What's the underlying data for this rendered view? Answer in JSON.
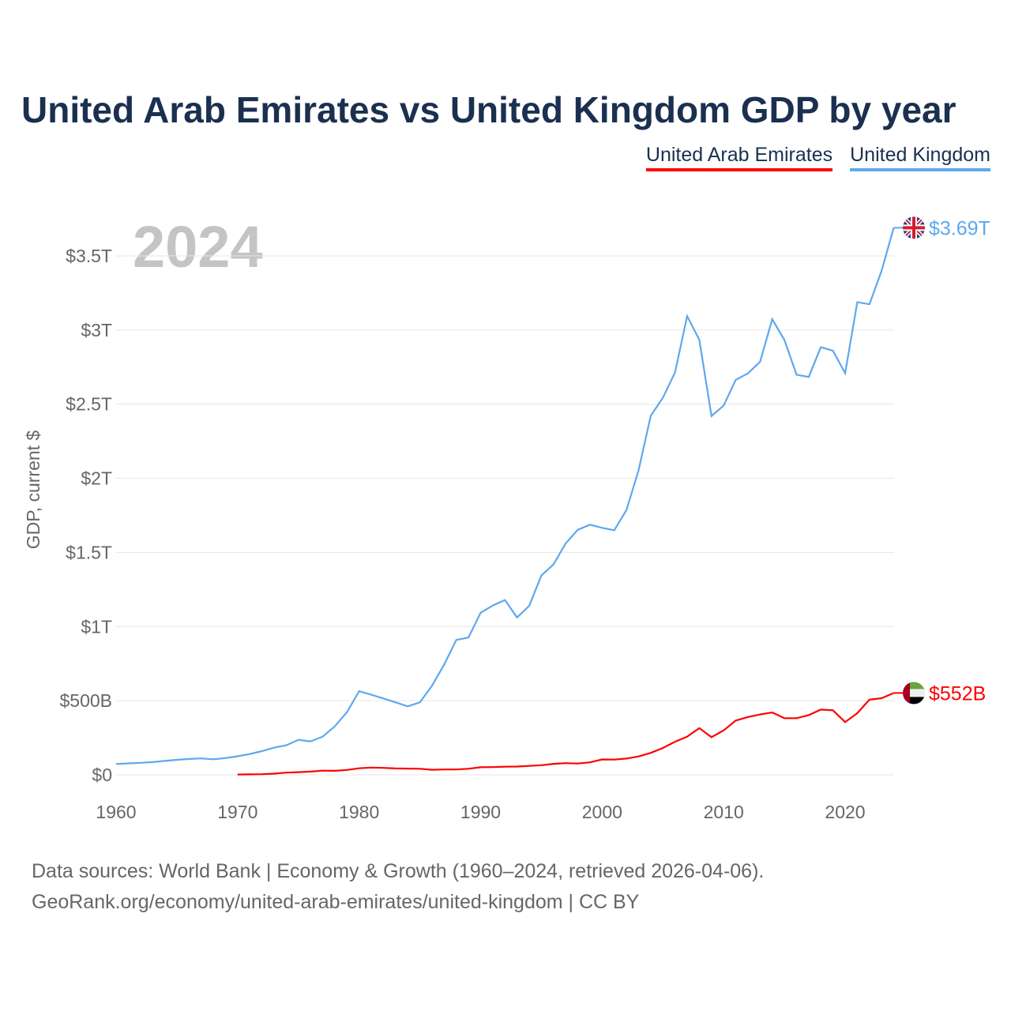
{
  "chart_data": {
    "type": "line",
    "title": "United Arab Emirates vs United Kingdom GDP by year",
    "ylabel": "GDP, current $",
    "xlabel": "",
    "year_label": "2024",
    "xlim": [
      1960,
      2024
    ],
    "ylim": [
      0,
      3.7
    ],
    "x_ticks": [
      {
        "v": 1960,
        "label": "1960"
      },
      {
        "v": 1970,
        "label": "1970"
      },
      {
        "v": 1980,
        "label": "1980"
      },
      {
        "v": 1990,
        "label": "1990"
      },
      {
        "v": 2000,
        "label": "2000"
      },
      {
        "v": 2010,
        "label": "2010"
      },
      {
        "v": 2020,
        "label": "2020"
      }
    ],
    "y_ticks": [
      {
        "v": 0,
        "label": "$0"
      },
      {
        "v": 0.5,
        "label": "$500B"
      },
      {
        "v": 1,
        "label": "$1T"
      },
      {
        "v": 1.5,
        "label": "$1.5T"
      },
      {
        "v": 2,
        "label": "$2T"
      },
      {
        "v": 2.5,
        "label": "$2.5T"
      },
      {
        "v": 3,
        "label": "$3T"
      },
      {
        "v": 3.5,
        "label": "$3.5T"
      }
    ],
    "grid": true,
    "legend_position": "top-right",
    "series": [
      {
        "name": "United Arab Emirates",
        "color": "#ff0000",
        "end_label": "$552B",
        "flag": "uae-flag",
        "start": 1970,
        "values": [
          0.002,
          0.003,
          0.004,
          0.008,
          0.015,
          0.018,
          0.022,
          0.028,
          0.027,
          0.033,
          0.044,
          0.049,
          0.047,
          0.043,
          0.042,
          0.041,
          0.034,
          0.036,
          0.036,
          0.041,
          0.051,
          0.052,
          0.055,
          0.056,
          0.06,
          0.065,
          0.074,
          0.079,
          0.076,
          0.084,
          0.104,
          0.103,
          0.11,
          0.124,
          0.148,
          0.181,
          0.223,
          0.258,
          0.315,
          0.254,
          0.3,
          0.366,
          0.39,
          0.407,
          0.421,
          0.382,
          0.382,
          0.403,
          0.44,
          0.435,
          0.356,
          0.416,
          0.507,
          0.517,
          0.552
        ]
      },
      {
        "name": "United Kingdom",
        "color": "#5ea8ee",
        "end_label": "$3.69T",
        "flag": "uk-flag",
        "start": 1960,
        "values": [
          0.073,
          0.077,
          0.081,
          0.086,
          0.094,
          0.101,
          0.107,
          0.111,
          0.105,
          0.113,
          0.125,
          0.14,
          0.16,
          0.183,
          0.199,
          0.236,
          0.226,
          0.258,
          0.327,
          0.423,
          0.564,
          0.54,
          0.515,
          0.489,
          0.462,
          0.489,
          0.601,
          0.745,
          0.91,
          0.926,
          1.093,
          1.142,
          1.179,
          1.061,
          1.14,
          1.344,
          1.419,
          1.561,
          1.653,
          1.687,
          1.666,
          1.65,
          1.785,
          2.054,
          2.422,
          2.544,
          2.713,
          3.094,
          2.934,
          2.42,
          2.491,
          2.664,
          2.708,
          2.786,
          3.073,
          2.933,
          2.699,
          2.684,
          2.884,
          2.86,
          2.709,
          3.188,
          3.174,
          3.4,
          3.69
        ]
      }
    ]
  },
  "footer": {
    "line1": "Data sources: World Bank | Economy & Growth (1960–2024, retrieved 2026-04-06).",
    "line2": "GeoRank.org/economy/united-arab-emirates/united-kingdom | CC BY"
  }
}
